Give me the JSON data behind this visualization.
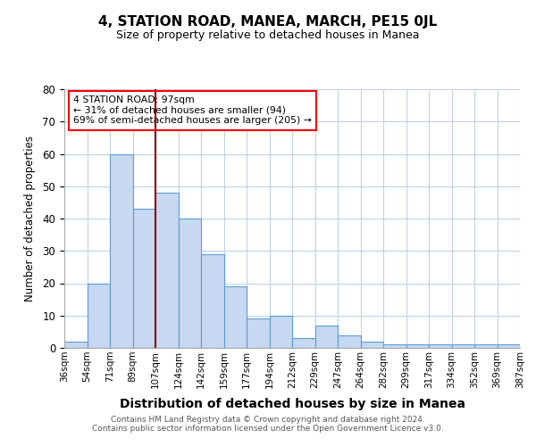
{
  "title": "4, STATION ROAD, MANEA, MARCH, PE15 0JL",
  "subtitle": "Size of property relative to detached houses in Manea",
  "xlabel": "Distribution of detached houses by size in Manea",
  "ylabel": "Number of detached properties",
  "bar_labels": [
    "36sqm",
    "54sqm",
    "71sqm",
    "89sqm",
    "107sqm",
    "124sqm",
    "142sqm",
    "159sqm",
    "177sqm",
    "194sqm",
    "212sqm",
    "229sqm",
    "247sqm",
    "264sqm",
    "282sqm",
    "299sqm",
    "317sqm",
    "334sqm",
    "352sqm",
    "369sqm",
    "387sqm"
  ],
  "bar_values": [
    2,
    20,
    60,
    43,
    48,
    40,
    29,
    19,
    9,
    10,
    3,
    7,
    4,
    2,
    1,
    1,
    1,
    1,
    1,
    1
  ],
  "bar_color": "#c6d9f1",
  "bar_edge_color": "#5b9bd5",
  "vline_x": 3.5,
  "vline_color": "#8b0000",
  "annotation_text": "4 STATION ROAD: 97sqm\n← 31% of detached houses are smaller (94)\n69% of semi-detached houses are larger (205) →",
  "annotation_box_color": "#ff0000",
  "ylim": [
    0,
    80
  ],
  "yticks": [
    0,
    10,
    20,
    30,
    40,
    50,
    60,
    70,
    80
  ],
  "footer_text": "Contains HM Land Registry data © Crown copyright and database right 2024.\nContains public sector information licensed under the Open Government Licence v3.0.",
  "background_color": "#ffffff",
  "grid_color": "#c0d0e8"
}
